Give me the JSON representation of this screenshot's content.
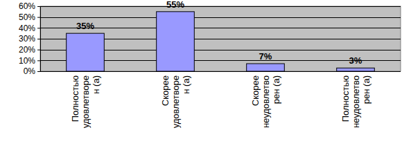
{
  "chart_data": {
    "type": "bar",
    "categories": [
      "Полностью удовлетворен (а)",
      "Скорее удовлетворен (а)",
      "Скорее неудовлетворен (а)",
      "Полностью неудовлетворен (а)"
    ],
    "values": [
      35,
      55,
      7,
      3
    ],
    "value_labels": [
      "35%",
      "55%",
      "7%",
      "3%"
    ],
    "color": "#9999ff",
    "ylim": [
      0,
      60
    ],
    "yticks": [
      {
        "value": 0,
        "label": "0%"
      },
      {
        "value": 10,
        "label": "10%"
      },
      {
        "value": 20,
        "label": "20%"
      },
      {
        "value": 30,
        "label": "30%"
      },
      {
        "value": 40,
        "label": "40%"
      },
      {
        "value": 50,
        "label": "50%"
      },
      {
        "value": 60,
        "label": "60%"
      }
    ],
    "grid": true,
    "data_labels": true
  }
}
